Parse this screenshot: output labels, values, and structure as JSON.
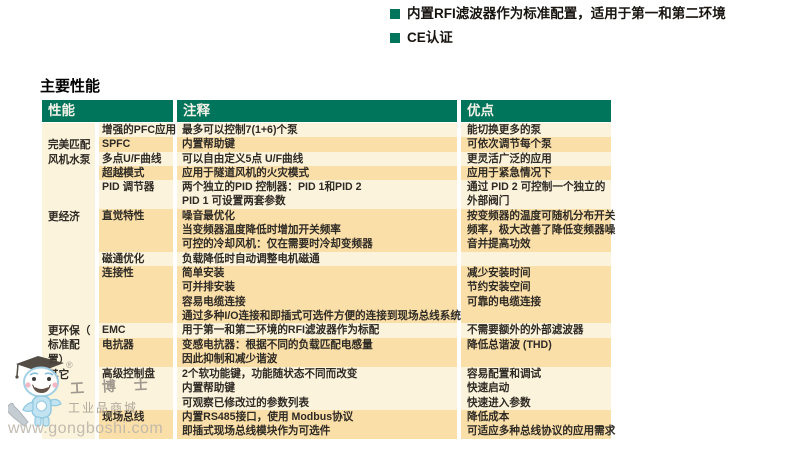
{
  "bullets": [
    {
      "text": "内置RFI滤波器作为标准配置，适用于第一和第二环境"
    },
    {
      "text": "CE认证"
    }
  ],
  "section_title": "主要性能",
  "colors": {
    "header_green": "#00755b",
    "row_cream": "#fcf3dc",
    "row_tan": "#fbdfa9",
    "bullet_green": "#00755b"
  },
  "table": {
    "headers": {
      "performance": "性能",
      "notes": "注释",
      "advantages": "优点"
    },
    "groups": [
      {
        "label_lines": [
          "完美匹配",
          "风机水泵"
        ],
        "label_offset": 1,
        "rows": [
          {
            "feature": "增强的PFC应用",
            "shade": "cream",
            "notes": [
              "最多可以控制7(1+6)个泵"
            ],
            "advantages": [
              "能切换更多的泵"
            ]
          },
          {
            "feature": "SPFC",
            "shade": "tan",
            "notes": [
              "内置帮助键"
            ],
            "advantages": [
              "可依次调节每个泵"
            ]
          },
          {
            "feature": "多点U/F曲线",
            "shade": "cream",
            "notes": [
              "可以自由定义5点 U/F曲线"
            ],
            "advantages": [
              "更灵活广泛的应用"
            ]
          },
          {
            "feature": "超越模式",
            "shade": "tan",
            "notes": [
              "应用于隧道风机的火灾模式"
            ],
            "advantages": [
              "应用于紧急情况下"
            ]
          },
          {
            "feature": "PID 调节器",
            "shade": "cream",
            "notes": [
              "两个独立的PID 控制器：PID 1和PID 2",
              "PID 1 可设置两套参数"
            ],
            "advantages": [
              "通过 PID 2 可控制一个独立的",
              "外部阀门"
            ]
          }
        ]
      },
      {
        "label_lines": [
          "更经济"
        ],
        "label_offset": 0,
        "rows": [
          {
            "feature": "直觉特性",
            "shade": "tan",
            "notes": [
              "噪音最优化",
              "当变频器温度降低时增加开关频率",
              "可控的冷却风机：仅在需要时冷却变频器"
            ],
            "advantages": [
              "按变频器的温度可随机分布开关",
              "频率，极大改善了降低变频器噪",
              "音并提高功效"
            ]
          },
          {
            "feature": "磁通优化",
            "shade": "cream",
            "notes": [
              "负载降低时自动调整电机磁通"
            ],
            "advantages": []
          },
          {
            "feature": "连接性",
            "shade": "tan",
            "notes": [
              "简单安装",
              "可并排安装",
              "容易电缆连接",
              "通过多种I/O连接和即插式可选件方便的连接到现场总线系统上"
            ],
            "advantages": [
              "减少安装时间",
              "节约安装空间",
              "可靠的电缆连接"
            ]
          }
        ]
      },
      {
        "label_lines": [
          "更环保（",
          "标准配",
          "置）"
        ],
        "label_offset": 0,
        "rows": [
          {
            "feature": "EMC",
            "shade": "cream",
            "notes": [
              "用于第一和第二环境的RFI滤波器作为标配"
            ],
            "advantages": [
              "不需要额外的外部滤波器"
            ]
          },
          {
            "feature": "电抗器",
            "shade": "tan",
            "notes": [
              "变感电抗器：根据不同的负载匹配电感量",
              "因此抑制和减少谐波"
            ],
            "advantages": [
              "降低总谐波 (THD)"
            ]
          }
        ]
      },
      {
        "label_lines": [
          "其它"
        ],
        "label_offset": 0,
        "rows": [
          {
            "feature": "高级控制盘",
            "shade": "cream",
            "notes": [
              "2个软功能键，功能随状态不同而改变",
              "内置帮助键",
              "可观察已修改过的参数列表"
            ],
            "advantages": [
              "容易配置和调试",
              "快速启动",
              "快速进入参数"
            ]
          },
          {
            "feature": "现场总线",
            "shade": "tan",
            "notes": [
              "内置RS485接口，使用 Modbus协议",
              "即插式现场总线模块作为可选件"
            ],
            "advantages": [
              "降低成本",
              "可适应多种总线协议的应用需求"
            ]
          }
        ]
      }
    ]
  },
  "watermark": {
    "reg": "®",
    "brand": "工 博 士",
    "subtitle": "工业品商城",
    "url": "www.gongboshi.com"
  }
}
